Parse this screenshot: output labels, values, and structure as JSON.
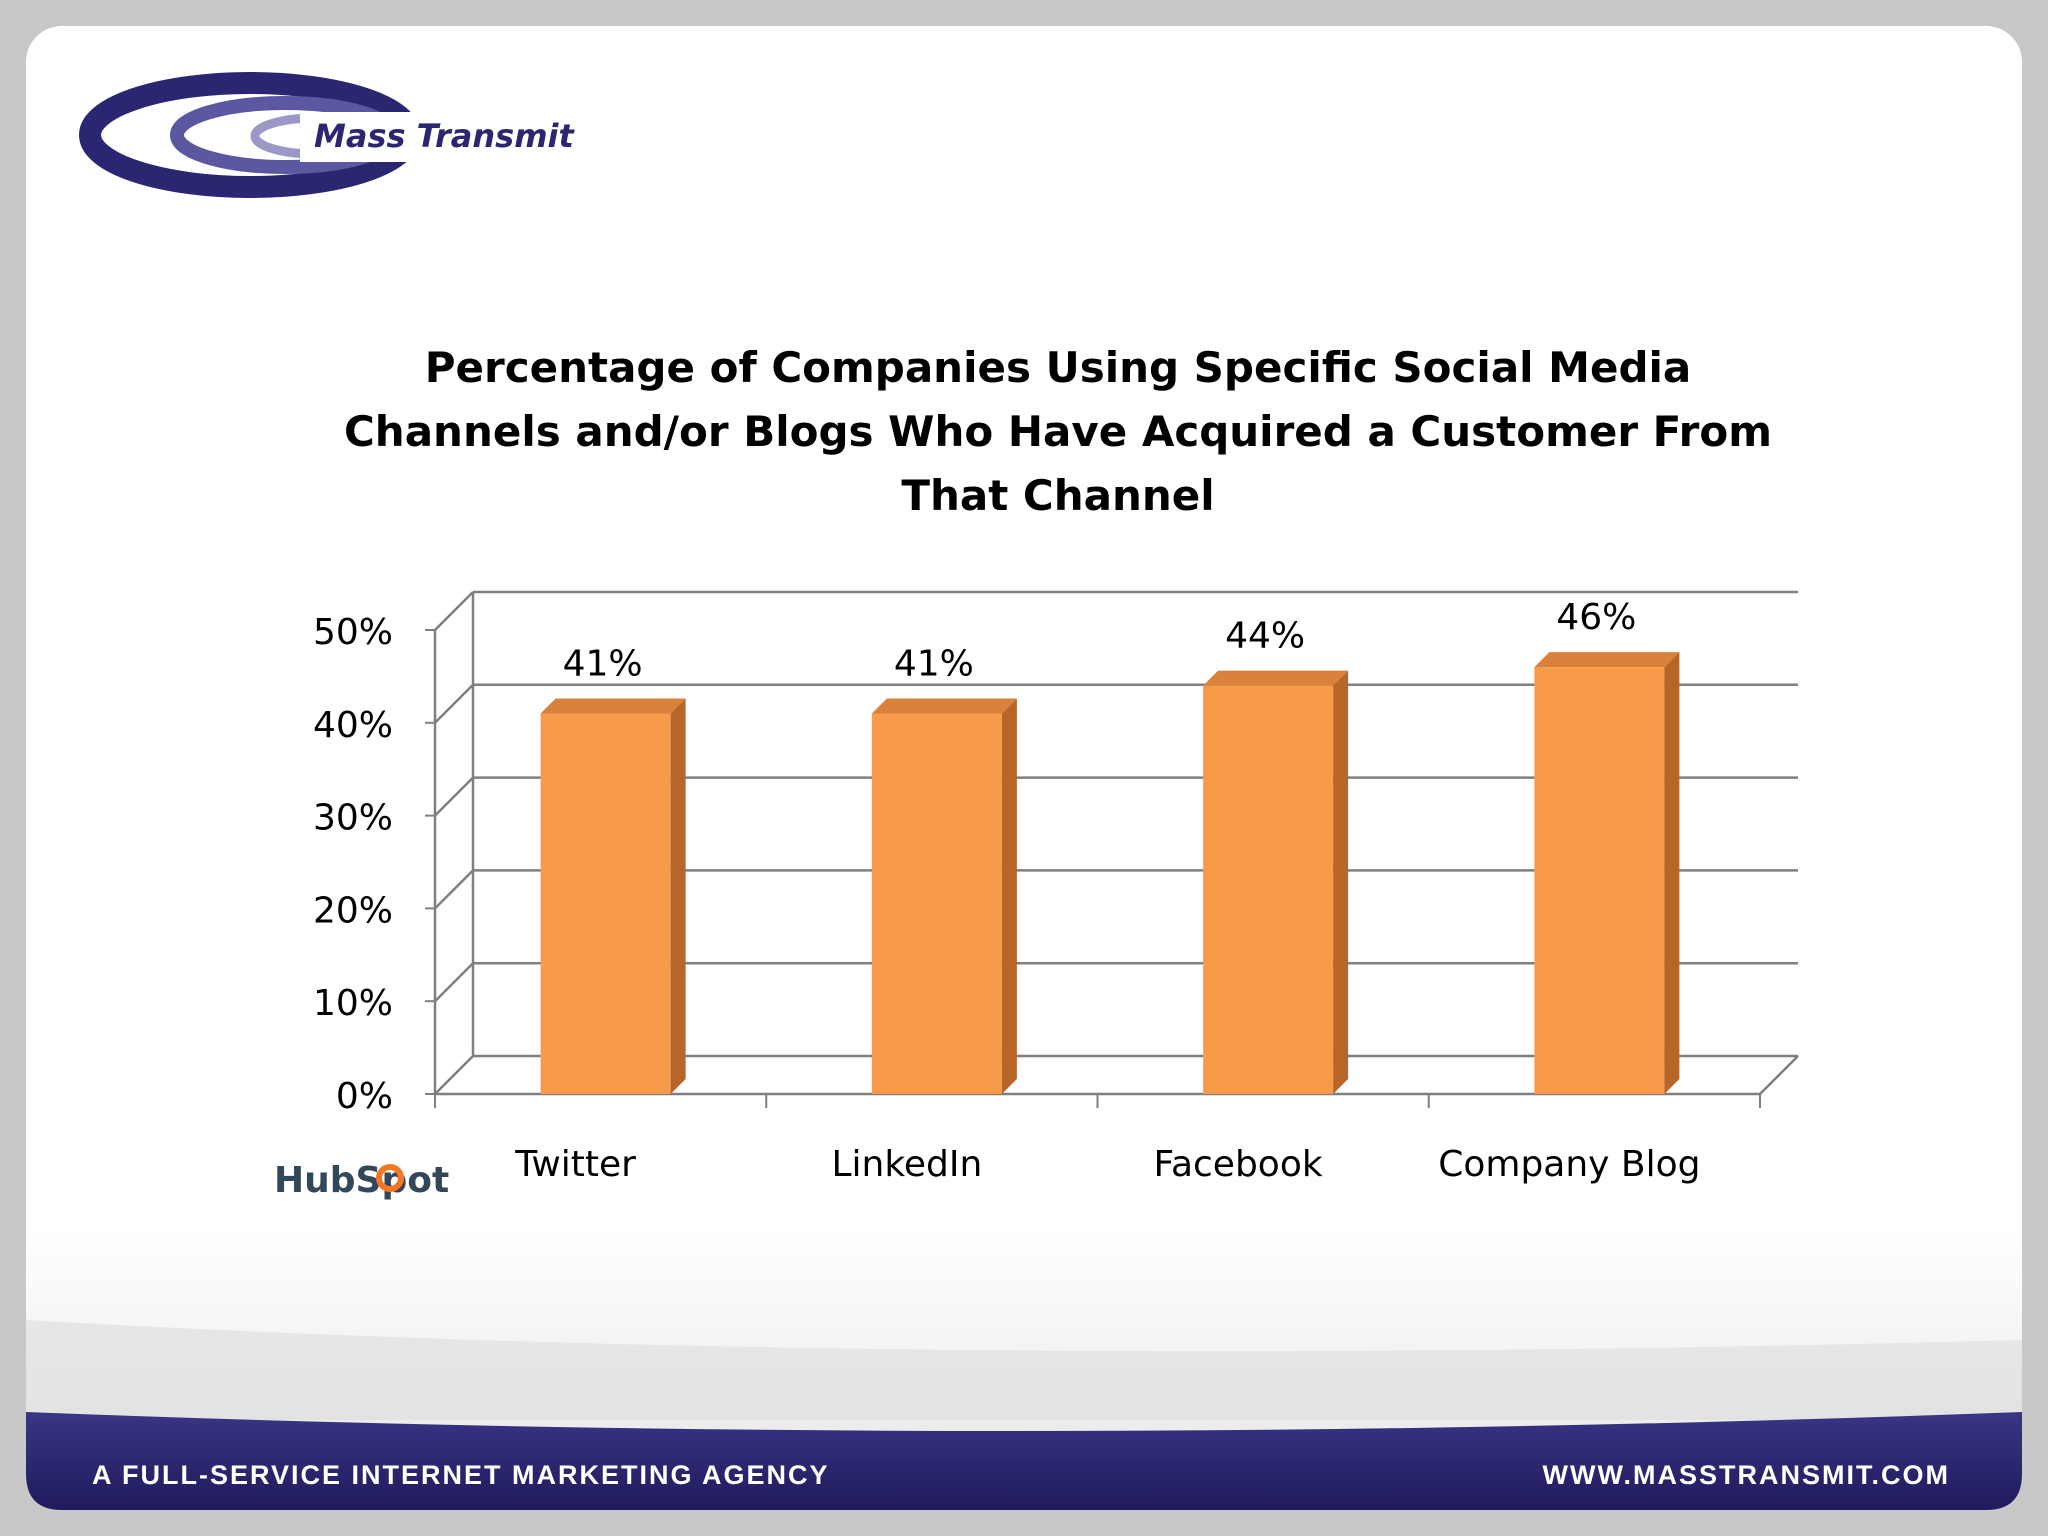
{
  "header": {
    "logo_text": "Mass Transmit"
  },
  "footer": {
    "tagline": "A FULL-SERVICE INTERNET MARKETING AGENCY",
    "website": "WWW.MASSTRANSMIT.COM"
  },
  "source": {
    "logo_text": "HubSpot"
  },
  "colors": {
    "bar_front": "#f79a4a",
    "bar_top": "#d9823c",
    "bar_side": "#b8652a",
    "brand_navy": "#2b2672",
    "grid": "#7f7f7f"
  },
  "chart_data": {
    "type": "bar",
    "title": "Percentage of Companies Using Specific Social Media Channels and/or Blogs Who Have Acquired a Customer From That Channel",
    "title_lines": [
      "Percentage of Companies Using Specific Social Media",
      "Channels and/or Blogs Who Have Acquired a Customer From",
      "That Channel"
    ],
    "categories": [
      "Twitter",
      "LinkedIn",
      "Facebook",
      "Company Blog"
    ],
    "values": [
      41,
      41,
      44,
      46
    ],
    "value_labels": [
      "41%",
      "41%",
      "44%",
      "46%"
    ],
    "y_ticks": [
      0,
      10,
      20,
      30,
      40,
      50
    ],
    "y_tick_labels": [
      "0%",
      "10%",
      "20%",
      "30%",
      "40%",
      "50%"
    ],
    "ylim": [
      0,
      50
    ],
    "grid": true,
    "legend": "none",
    "style": "3d"
  }
}
